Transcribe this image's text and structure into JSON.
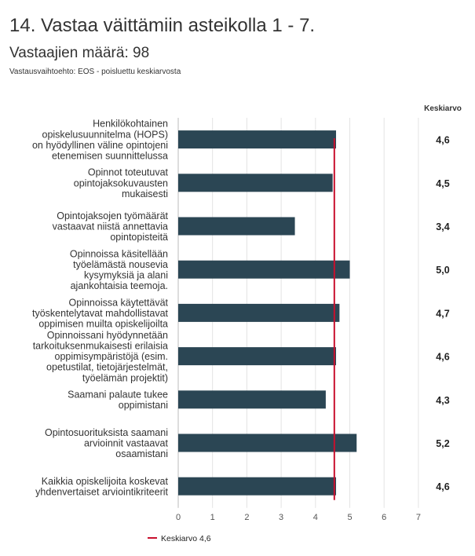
{
  "header": {
    "title": "14. Vastaa väittämiin asteikolla 1 - 7.",
    "subtitle": "Vastaajien määrä: 98",
    "note": "Vastausvaihtoehto: EOS - poisluettu keskiarvosta"
  },
  "colors": {
    "bar": "#2b4654",
    "mean_line": "#c8102e",
    "grid": "#e3e3e3",
    "axis": "#bbbbbb"
  },
  "chart_data": {
    "type": "bar",
    "orientation": "horizontal",
    "value_column_header": "Keskiarvo",
    "categories": [
      [
        "Henkilökohtainen",
        "opiskelusuunnitelma (HOPS)",
        "on hyödyllinen väline opintojeni",
        "etenemisen suunnittelussa"
      ],
      [
        "Opinnot toteutuvat",
        "opintojaksokuvausten",
        "mukaisesti"
      ],
      [
        "Opintojaksojen työmäärät",
        "vastaavat niistä annettavia",
        "opintopisteitä"
      ],
      [
        "Opinnoissa käsitellään",
        "työelämästä nousevia",
        "kysymyksiä ja alani",
        "ajankohtaisia teemoja."
      ],
      [
        "Opinnoissa käytettävät",
        "työskentelytavat mahdollistavat",
        "oppimisen muilta opiskelijoilta"
      ],
      [
        "Opinnoissani hyödynnetään",
        "tarkoituksenmukaisesti erilaisia",
        "oppimisympäristöjä (esim.",
        "opetustilat, tietojärjestelmät,",
        "työelämän projektit)"
      ],
      [
        "Saamani palaute tukee",
        "oppimistani"
      ],
      [
        "Opintosuorituksista saamani",
        "arvioinnit vastaavat",
        "osaamistani"
      ],
      [
        "Kaikkia opiskelijoita koskevat",
        "yhdenvertaiset arviointikriteerit"
      ]
    ],
    "values": [
      4.6,
      4.5,
      3.4,
      5.0,
      4.7,
      4.6,
      4.3,
      5.2,
      4.6
    ],
    "value_labels": [
      "4,6",
      "4,5",
      "3,4",
      "5,0",
      "4,7",
      "4,6",
      "4,3",
      "5,2",
      "4,6"
    ],
    "xlim": [
      0,
      7
    ],
    "xticks": [
      0,
      1,
      2,
      3,
      4,
      5,
      6,
      7
    ],
    "reference_line": {
      "value": 4.55,
      "legend_label": "Keskiarvo 4,6"
    },
    "grid": true,
    "legend_position": "bottom-left"
  }
}
